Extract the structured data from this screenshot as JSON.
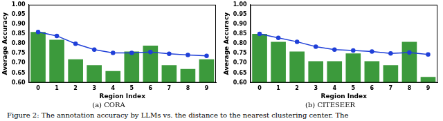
{
  "caption": "Figure 2: The annotation accuracy by LLMs vs. the distance to the nearest clustering center. The",
  "chart_data": [
    {
      "type": "bar",
      "title": "(a) CORA",
      "x_label": "Region Index",
      "y_label": "Average Accuracy",
      "categories": [
        "0",
        "1",
        "2",
        "3",
        "4",
        "5",
        "6",
        "7",
        "8",
        "9"
      ],
      "series": [
        {
          "type": "bar",
          "color": "#3c9a3c",
          "values": [
            0.86,
            0.82,
            0.72,
            0.69,
            0.66,
            0.76,
            0.79,
            0.69,
            0.67,
            0.72
          ]
        },
        {
          "type": "line",
          "color": "#2040d8",
          "marker": "circle",
          "line_style": "solid",
          "values": [
            0.86,
            0.84,
            0.8,
            0.77,
            0.753,
            0.753,
            0.757,
            0.748,
            0.742,
            0.738
          ]
        }
      ],
      "ylim": [
        0.6,
        1.0
      ],
      "yticks": [
        {
          "value": 0.6,
          "label": "0.60"
        },
        {
          "value": 0.65,
          "label": "0.65"
        },
        {
          "value": 0.7,
          "label": "0.70"
        },
        {
          "value": 0.75,
          "label": "0.75"
        },
        {
          "value": 0.8,
          "label": "0.80"
        },
        {
          "value": 0.85,
          "label": "0.85"
        },
        {
          "value": 0.9,
          "label": "0.90"
        },
        {
          "value": 0.95,
          "label": "0.95"
        },
        {
          "value": 1.0,
          "label": "1.00"
        }
      ],
      "grid": false
    },
    {
      "type": "bar",
      "title": "(b) CITESEER",
      "x_label": "Region Index",
      "y_label": "Average Accuracy",
      "categories": [
        "0",
        "1",
        "2",
        "3",
        "4",
        "5",
        "6",
        "7",
        "8",
        "9"
      ],
      "series": [
        {
          "type": "bar",
          "color": "#3c9a3c",
          "values": [
            0.85,
            0.81,
            0.76,
            0.71,
            0.71,
            0.75,
            0.71,
            0.69,
            0.81,
            0.63
          ]
        },
        {
          "type": "line",
          "color": "#2040d8",
          "marker": "circle",
          "line_style": "solid",
          "values": [
            0.85,
            0.83,
            0.81,
            0.785,
            0.77,
            0.765,
            0.76,
            0.75,
            0.755,
            0.745
          ]
        }
      ],
      "ylim": [
        0.6,
        1.0
      ],
      "yticks": [
        {
          "value": 0.6,
          "label": "0.60"
        },
        {
          "value": 0.65,
          "label": "0.65"
        },
        {
          "value": 0.7,
          "label": "0.70"
        },
        {
          "value": 0.75,
          "label": "0.75"
        },
        {
          "value": 0.8,
          "label": "0.80"
        },
        {
          "value": 0.85,
          "label": "0.85"
        },
        {
          "value": 0.9,
          "label": "0.90"
        },
        {
          "value": 0.95,
          "label": "0.95"
        },
        {
          "value": 1.0,
          "label": "1.00"
        }
      ],
      "grid": false
    }
  ]
}
